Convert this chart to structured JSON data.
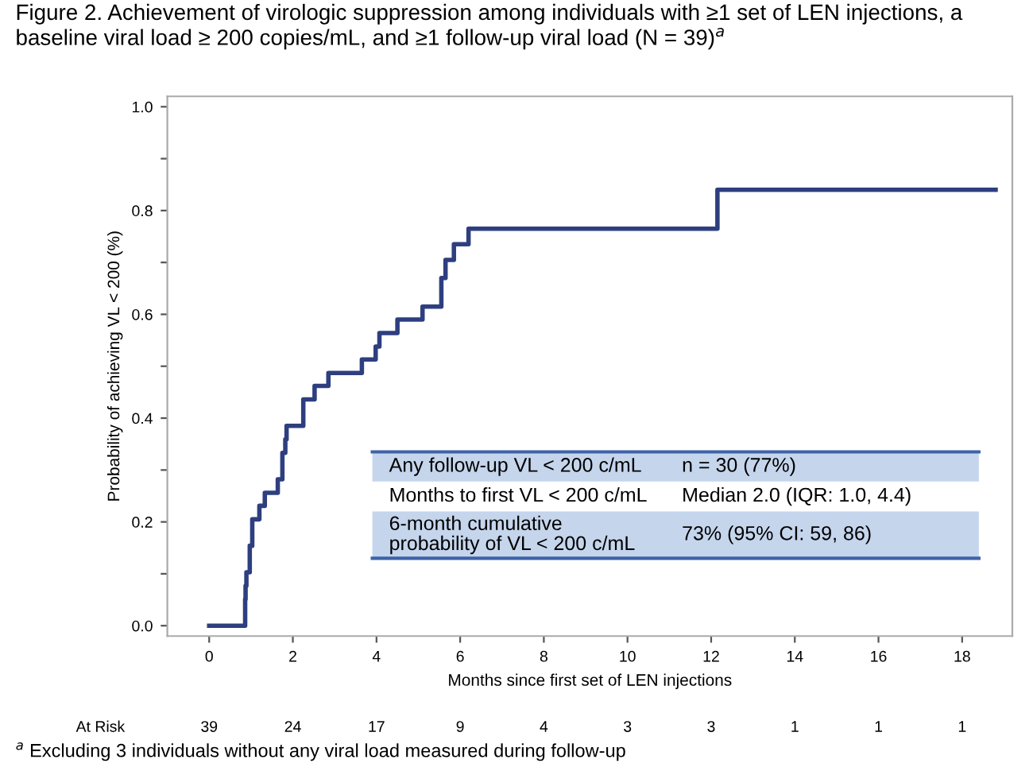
{
  "chart_data": {
    "type": "step",
    "title": "Figure 2. Achievement of virologic suppression among individuals with ≥1 set of LEN injections, a baseline viral load ≥ 200 copies/mL, and ≥1 follow-up viral load (N = 39)$^{a}$",
    "xlabel": "Months since first set of LEN injections",
    "ylabel": "Probability of achieving VL < 200 (%)",
    "series": [
      {
        "color": "#2e3f7f",
        "x": [
          0,
          0.86,
          0.87,
          0.89,
          0.97,
          1.03,
          1.2,
          1.33,
          1.64,
          1.75,
          1.82,
          1.85,
          2.25,
          2.52,
          2.85,
          3.65,
          3.98,
          4.07,
          4.5,
          5.1,
          5.55,
          5.65,
          5.85,
          6.2,
          12.15,
          18.8
        ],
        "values": [
          0,
          0.051,
          0.077,
          0.103,
          0.154,
          0.205,
          0.231,
          0.256,
          0.282,
          0.333,
          0.359,
          0.385,
          0.436,
          0.462,
          0.487,
          0.513,
          0.538,
          0.564,
          0.59,
          0.615,
          0.67,
          0.705,
          0.735,
          0.765,
          0.84,
          0.84
        ]
      }
    ],
    "xlim": [
      -1,
      19.2
    ],
    "ylim": [
      -0.02,
      1.02
    ],
    "xticks": [
      0,
      2,
      4,
      6,
      8,
      10,
      12,
      14,
      16,
      18
    ],
    "yticks": [
      {
        "value": 0,
        "label": "0.0"
      },
      {
        "value": 0.1,
        "label": null
      },
      {
        "value": 0.2,
        "label": "0.2"
      },
      {
        "value": 0.3,
        "label": null
      },
      {
        "value": 0.4,
        "label": "0.4"
      },
      {
        "value": 0.5,
        "label": null
      },
      {
        "value": 0.6,
        "label": "0.6"
      },
      {
        "value": 0.7,
        "label": null
      },
      {
        "value": 0.8,
        "label": "0.8"
      },
      {
        "value": 0.9,
        "label": null
      },
      {
        "value": 1.0,
        "label": "1.0"
      }
    ],
    "grid": false,
    "legend": false,
    "annotations": [
      "Any follow-up VL < 200 c/mL",
      "n = 30 (77%)",
      "Months to first VL < 200 c/mL",
      "Median 2.0 (IQR: 1.0, 4.4)",
      "6-month cumulative\nprobability of VL < 200 c/mL",
      "73% (95% CI: 59, 86)",
      "At Risk",
      "39",
      "24",
      "17",
      "9",
      "4",
      "3",
      "3",
      "1",
      "1",
      "1",
      "$^{a}$ Excluding 3 individuals without any viral load measured during follow-up"
    ]
  }
}
